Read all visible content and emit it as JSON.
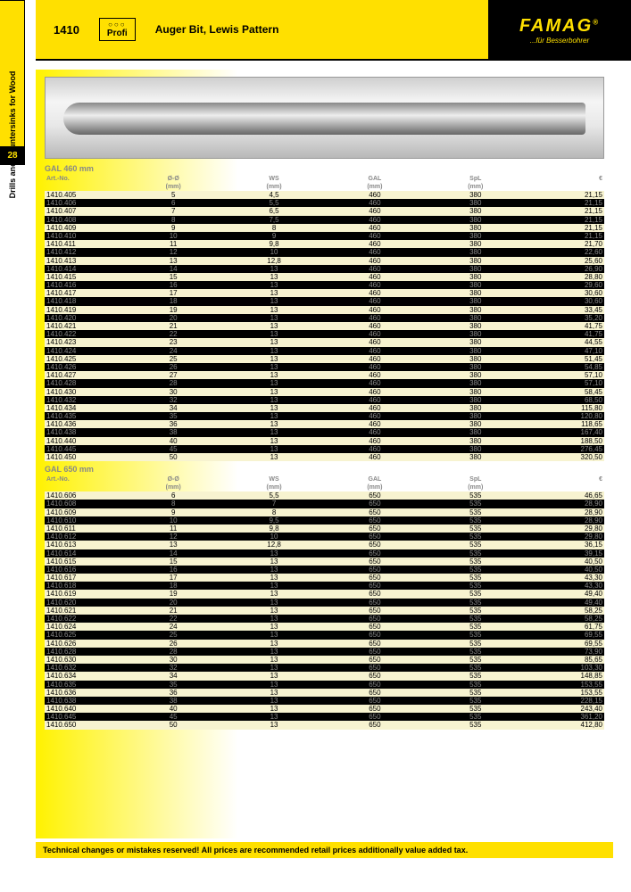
{
  "side_tab_label": "Drills and Countersinks for Wood",
  "page_number": "28",
  "header": {
    "code": "1410",
    "profi": "Profi",
    "title": "Auger Bit, Lewis Pattern",
    "logo_main": "FAMAG",
    "logo_sub": "...für Besserbohrer",
    "logo_reg": "®"
  },
  "columns": {
    "art": "Art.-No.",
    "dim": "Ø-Ø",
    "dim_unit": "(mm)",
    "ws": "WS",
    "ws_unit": "(mm)",
    "gal": "GAL",
    "gal_unit": "(mm)",
    "spl": "SpL",
    "spl_unit": "(mm)",
    "price": "€"
  },
  "sections": [
    {
      "title": "GAL 460 mm",
      "rows": [
        {
          "art": "1410.405",
          "d": "5",
          "ws": "4,5",
          "gal": "460",
          "spl": "380",
          "p": "21,15",
          "tone": "light"
        },
        {
          "art": "1410.406",
          "d": "6",
          "ws": "5,5",
          "gal": "460",
          "spl": "380",
          "p": "21,15",
          "tone": "dark"
        },
        {
          "art": "1410.407",
          "d": "7",
          "ws": "6,5",
          "gal": "460",
          "spl": "380",
          "p": "21,15",
          "tone": "light"
        },
        {
          "art": "1410.408",
          "d": "8",
          "ws": "7,5",
          "gal": "460",
          "spl": "380",
          "p": "21,15",
          "tone": "dark"
        },
        {
          "art": "1410.409",
          "d": "9",
          "ws": "8",
          "gal": "460",
          "spl": "380",
          "p": "21,15",
          "tone": "light"
        },
        {
          "art": "1410.410",
          "d": "10",
          "ws": "9",
          "gal": "460",
          "spl": "380",
          "p": "21,15",
          "tone": "dark"
        },
        {
          "art": "1410.411",
          "d": "11",
          "ws": "9,8",
          "gal": "460",
          "spl": "380",
          "p": "21,70",
          "tone": "light"
        },
        {
          "art": "1410.412",
          "d": "12",
          "ws": "10",
          "gal": "460",
          "spl": "380",
          "p": "22,60",
          "tone": "dark"
        },
        {
          "art": "1410.413",
          "d": "13",
          "ws": "12,8",
          "gal": "460",
          "spl": "380",
          "p": "25,60",
          "tone": "light"
        },
        {
          "art": "1410.414",
          "d": "14",
          "ws": "13",
          "gal": "460",
          "spl": "380",
          "p": "26,90",
          "tone": "dark"
        },
        {
          "art": "1410.415",
          "d": "15",
          "ws": "13",
          "gal": "460",
          "spl": "380",
          "p": "28,80",
          "tone": "light"
        },
        {
          "art": "1410.416",
          "d": "16",
          "ws": "13",
          "gal": "460",
          "spl": "380",
          "p": "29,60",
          "tone": "dark"
        },
        {
          "art": "1410.417",
          "d": "17",
          "ws": "13",
          "gal": "460",
          "spl": "380",
          "p": "30,60",
          "tone": "light"
        },
        {
          "art": "1410.418",
          "d": "18",
          "ws": "13",
          "gal": "460",
          "spl": "380",
          "p": "30,60",
          "tone": "dark"
        },
        {
          "art": "1410.419",
          "d": "19",
          "ws": "13",
          "gal": "460",
          "spl": "380",
          "p": "33,45",
          "tone": "light"
        },
        {
          "art": "1410.420",
          "d": "20",
          "ws": "13",
          "gal": "460",
          "spl": "380",
          "p": "35,20",
          "tone": "dark"
        },
        {
          "art": "1410.421",
          "d": "21",
          "ws": "13",
          "gal": "460",
          "spl": "380",
          "p": "41,75",
          "tone": "light"
        },
        {
          "art": "1410.422",
          "d": "22",
          "ws": "13",
          "gal": "460",
          "spl": "380",
          "p": "41,75",
          "tone": "dark"
        },
        {
          "art": "1410.423",
          "d": "23",
          "ws": "13",
          "gal": "460",
          "spl": "380",
          "p": "44,55",
          "tone": "light"
        },
        {
          "art": "1410.424",
          "d": "24",
          "ws": "13",
          "gal": "460",
          "spl": "380",
          "p": "47,10",
          "tone": "dark"
        },
        {
          "art": "1410.425",
          "d": "25",
          "ws": "13",
          "gal": "460",
          "spl": "380",
          "p": "51,45",
          "tone": "light"
        },
        {
          "art": "1410.426",
          "d": "26",
          "ws": "13",
          "gal": "460",
          "spl": "380",
          "p": "54,85",
          "tone": "dark"
        },
        {
          "art": "1410.427",
          "d": "27",
          "ws": "13",
          "gal": "460",
          "spl": "380",
          "p": "57,10",
          "tone": "light"
        },
        {
          "art": "1410.428",
          "d": "28",
          "ws": "13",
          "gal": "460",
          "spl": "380",
          "p": "57,10",
          "tone": "dark"
        },
        {
          "art": "1410.430",
          "d": "30",
          "ws": "13",
          "gal": "460",
          "spl": "380",
          "p": "58,45",
          "tone": "light"
        },
        {
          "art": "1410.432",
          "d": "32",
          "ws": "13",
          "gal": "460",
          "spl": "380",
          "p": "68,50",
          "tone": "dark"
        },
        {
          "art": "1410.434",
          "d": "34",
          "ws": "13",
          "gal": "460",
          "spl": "380",
          "p": "115,80",
          "tone": "light"
        },
        {
          "art": "1410.435",
          "d": "35",
          "ws": "13",
          "gal": "460",
          "spl": "380",
          "p": "120,80",
          "tone": "dark"
        },
        {
          "art": "1410.436",
          "d": "36",
          "ws": "13",
          "gal": "460",
          "spl": "380",
          "p": "118,65",
          "tone": "light"
        },
        {
          "art": "1410.438",
          "d": "38",
          "ws": "13",
          "gal": "460",
          "spl": "380",
          "p": "167,40",
          "tone": "dark"
        },
        {
          "art": "1410.440",
          "d": "40",
          "ws": "13",
          "gal": "460",
          "spl": "380",
          "p": "188,50",
          "tone": "light"
        },
        {
          "art": "1410.445",
          "d": "45",
          "ws": "13",
          "gal": "460",
          "spl": "380",
          "p": "276,45",
          "tone": "dark"
        },
        {
          "art": "1410.450",
          "d": "50",
          "ws": "13",
          "gal": "460",
          "spl": "380",
          "p": "320,50",
          "tone": "light"
        }
      ]
    },
    {
      "title": "GAL 650 mm",
      "rows": [
        {
          "art": "1410.606",
          "d": "6",
          "ws": "5,5",
          "gal": "650",
          "spl": "535",
          "p": "46,65",
          "tone": "light"
        },
        {
          "art": "1410.608",
          "d": "8",
          "ws": "7",
          "gal": "650",
          "spl": "535",
          "p": "28,90",
          "tone": "dark"
        },
        {
          "art": "1410.609",
          "d": "9",
          "ws": "8",
          "gal": "650",
          "spl": "535",
          "p": "28,90",
          "tone": "light"
        },
        {
          "art": "1410.610",
          "d": "10",
          "ws": "9,5",
          "gal": "650",
          "spl": "535",
          "p": "28,90",
          "tone": "dark"
        },
        {
          "art": "1410.611",
          "d": "11",
          "ws": "9,8",
          "gal": "650",
          "spl": "535",
          "p": "29,80",
          "tone": "light"
        },
        {
          "art": "1410.612",
          "d": "12",
          "ws": "10",
          "gal": "650",
          "spl": "535",
          "p": "29,80",
          "tone": "dark"
        },
        {
          "art": "1410.613",
          "d": "13",
          "ws": "12,8",
          "gal": "650",
          "spl": "535",
          "p": "36,15",
          "tone": "light"
        },
        {
          "art": "1410.614",
          "d": "14",
          "ws": "13",
          "gal": "650",
          "spl": "535",
          "p": "39,15",
          "tone": "dark"
        },
        {
          "art": "1410.615",
          "d": "15",
          "ws": "13",
          "gal": "650",
          "spl": "535",
          "p": "40,50",
          "tone": "light"
        },
        {
          "art": "1410.616",
          "d": "16",
          "ws": "13",
          "gal": "650",
          "spl": "535",
          "p": "40,50",
          "tone": "dark"
        },
        {
          "art": "1410.617",
          "d": "17",
          "ws": "13",
          "gal": "650",
          "spl": "535",
          "p": "43,30",
          "tone": "light"
        },
        {
          "art": "1410.618",
          "d": "18",
          "ws": "13",
          "gal": "650",
          "spl": "535",
          "p": "43,30",
          "tone": "dark"
        },
        {
          "art": "1410.619",
          "d": "19",
          "ws": "13",
          "gal": "650",
          "spl": "535",
          "p": "49,40",
          "tone": "light"
        },
        {
          "art": "1410.620",
          "d": "20",
          "ws": "13",
          "gal": "650",
          "spl": "535",
          "p": "49,40",
          "tone": "dark"
        },
        {
          "art": "1410.621",
          "d": "21",
          "ws": "13",
          "gal": "650",
          "spl": "535",
          "p": "58,25",
          "tone": "light"
        },
        {
          "art": "1410.622",
          "d": "22",
          "ws": "13",
          "gal": "650",
          "spl": "535",
          "p": "58,25",
          "tone": "dark"
        },
        {
          "art": "1410.624",
          "d": "24",
          "ws": "13",
          "gal": "650",
          "spl": "535",
          "p": "61,75",
          "tone": "light"
        },
        {
          "art": "1410.625",
          "d": "25",
          "ws": "13",
          "gal": "650",
          "spl": "535",
          "p": "69,55",
          "tone": "dark"
        },
        {
          "art": "1410.626",
          "d": "26",
          "ws": "13",
          "gal": "650",
          "spl": "535",
          "p": "69,55",
          "tone": "light"
        },
        {
          "art": "1410.628",
          "d": "28",
          "ws": "13",
          "gal": "650",
          "spl": "535",
          "p": "73,90",
          "tone": "dark"
        },
        {
          "art": "1410.630",
          "d": "30",
          "ws": "13",
          "gal": "650",
          "spl": "535",
          "p": "85,65",
          "tone": "light"
        },
        {
          "art": "1410.632",
          "d": "32",
          "ws": "13",
          "gal": "650",
          "spl": "535",
          "p": "103,30",
          "tone": "dark"
        },
        {
          "art": "1410.634",
          "d": "34",
          "ws": "13",
          "gal": "650",
          "spl": "535",
          "p": "148,85",
          "tone": "light"
        },
        {
          "art": "1410.635",
          "d": "35",
          "ws": "13",
          "gal": "650",
          "spl": "535",
          "p": "153,55",
          "tone": "dark"
        },
        {
          "art": "1410.636",
          "d": "36",
          "ws": "13",
          "gal": "650",
          "spl": "535",
          "p": "153,55",
          "tone": "light"
        },
        {
          "art": "1410.638",
          "d": "38",
          "ws": "13",
          "gal": "650",
          "spl": "535",
          "p": "228,15",
          "tone": "dark"
        },
        {
          "art": "1410.640",
          "d": "40",
          "ws": "13",
          "gal": "650",
          "spl": "535",
          "p": "243,40",
          "tone": "light"
        },
        {
          "art": "1410.645",
          "d": "45",
          "ws": "13",
          "gal": "650",
          "spl": "535",
          "p": "361,20",
          "tone": "dark"
        },
        {
          "art": "1410.650",
          "d": "50",
          "ws": "13",
          "gal": "650",
          "spl": "535",
          "p": "412,80",
          "tone": "light"
        }
      ]
    }
  ],
  "footer_text": "Technical changes or mistakes reserved! All prices are recommended retail prices additionally value added tax."
}
